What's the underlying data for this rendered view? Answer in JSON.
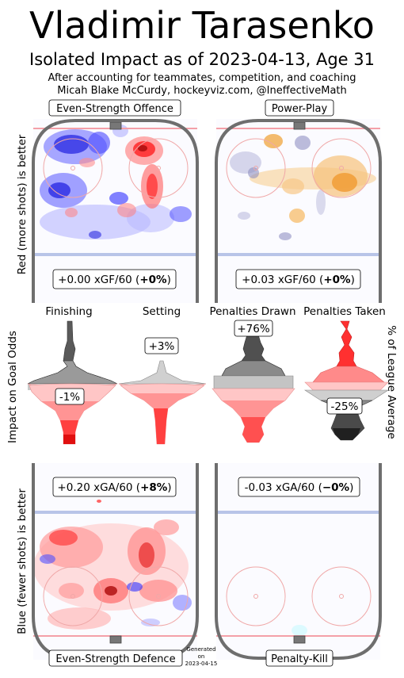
{
  "header": {
    "title": "Vladimir Tarasenko",
    "subtitle": "Isolated Impact as of 2023-04-13, Age 31",
    "note_line1": "After accounting for teammates, competition, and coaching",
    "note_line2": "Micah Blake McCurdy, hockeyviz.com, @IneffectiveMath"
  },
  "axis_labels": {
    "offence_side": "Red (more shots) is better",
    "defence_side": "Blue (fewer shots) is better",
    "middle_left": "Impact on Goal Odds",
    "middle_right": "% of League Average"
  },
  "footer": {
    "generated_l1": "Generated",
    "generated_l2": "on",
    "generated_l3": "2023-04-15"
  },
  "colors": {
    "red": "#ff2b2b",
    "blue": "#3c3cff",
    "orange": "#f0a030",
    "purple": "#8080c0",
    "rink_line": "#6e6e6e",
    "red_line": "#f4a0a8",
    "blue_line": "#b8c4e8"
  },
  "chart_data": [
    {
      "type": "heatmap",
      "panel": "Even-Strength Offence",
      "stat_prefix": "+0.00 xGF/60 (",
      "stat_pct": "+0%",
      "stat_suffix": ")",
      "xgf_per60": 0.0,
      "pct": 0,
      "palette": "red-blue"
    },
    {
      "type": "heatmap",
      "panel": "Power-Play",
      "stat_prefix": "+0.03 xGF/60 (",
      "stat_pct": "+0%",
      "stat_suffix": ")",
      "xgf_per60": 0.03,
      "pct": 0,
      "palette": "orange-purple"
    },
    {
      "type": "heatmap",
      "panel": "Even-Strength Defence",
      "stat_prefix": "+0.20 xGA/60 (",
      "stat_pct": "+8%",
      "stat_suffix": ")",
      "xga_per60": 0.2,
      "pct": 8,
      "palette": "red-blue"
    },
    {
      "type": "heatmap",
      "panel": "Penalty-Kill",
      "stat_prefix": "-0.03 xGA/60 (",
      "stat_pct": "−0%",
      "stat_suffix": ")",
      "xga_per60": -0.03,
      "pct": 0,
      "palette": "orange-purple"
    },
    {
      "type": "violin",
      "series": [
        {
          "name": "Finishing",
          "label": "-1%",
          "value": -1
        },
        {
          "name": "Setting",
          "label": "+3%",
          "value": 3
        },
        {
          "name": "Penalties Drawn",
          "label": "+76%",
          "value": 76
        },
        {
          "name": "Penalties Taken",
          "label": "-25%",
          "value": -25
        }
      ]
    }
  ]
}
